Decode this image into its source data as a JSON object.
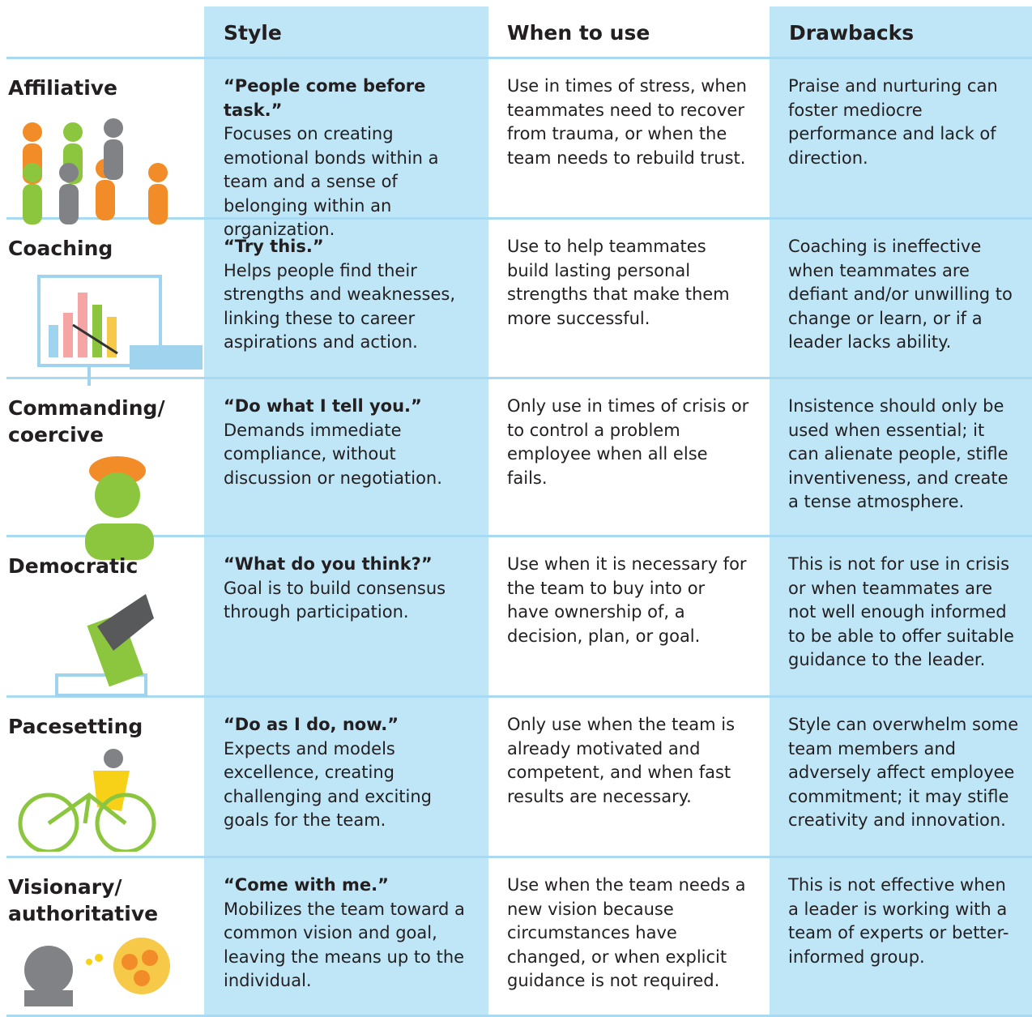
{
  "header": {
    "columns": [
      "Style",
      "When to use",
      "Drawbacks"
    ]
  },
  "rows": [
    {
      "name": [
        "Affiliative"
      ],
      "quote": "“People come before task.”",
      "style": "Focuses on creating emotional bonds within a team and a sense of belonging within an organization.",
      "when": "Use in times of stress, when teammates need to recover from trauma, or when the team needs to rebuild trust.",
      "drawbacks": "Praise and nurturing can foster mediocre performance and lack of direction."
    },
    {
      "name": [
        "Coaching"
      ],
      "quote": "“Try this.”",
      "style": "Helps people find their strengths and weaknesses, linking these to career aspirations and action.",
      "when": "Use to help teammates build lasting personal strengths that make them more successful.",
      "drawbacks": "Coaching is ineffective when teammates are defiant and/or unwilling to change or learn, or if a leader lacks ability."
    },
    {
      "name": [
        "Commanding/",
        "coercive"
      ],
      "quote": "“Do what I tell you.”",
      "style": "Demands immediate compliance, without discussion or negotiation.",
      "when": "Only use in times of crisis or to control a problem employee when all else fails.",
      "drawbacks": "Insistence should only be used when essential; it can alienate people, stifle inventiveness, and create a tense atmosphere."
    },
    {
      "name": [
        "Democratic"
      ],
      "quote": "“What do you think?”",
      "style": "Goal is to build consensus through participation.",
      "when": "Use when it is necessary for the team to buy into or have ownership of, a decision, plan, or goal.",
      "drawbacks": "This is not for use in crisis or when teammates are not well enough informed to be able to offer suitable guidance to the leader."
    },
    {
      "name": [
        "Pacesetting"
      ],
      "quote": "“Do as I do, now.”",
      "style": "Expects and models excellence, creating challenging and exciting goals for the team.",
      "when": "Only use when the team is already motivated and competent, and when fast results are necessary.",
      "drawbacks": "Style can overwhelm some team members and adversely affect employee commitment; it may stifle creativity and innovation."
    },
    {
      "name": [
        "Visionary/",
        "authoritative"
      ],
      "quote": "“Come with me.”",
      "style": "Mobilizes the team toward a common vision and goal, leaving the means up to the individual.",
      "when": "Use when the team needs a new vision because circumstances have changed, or when explicit guidance is not required.",
      "drawbacks": "This is not effective when a leader is working with a team of experts or better-informed group."
    }
  ]
}
